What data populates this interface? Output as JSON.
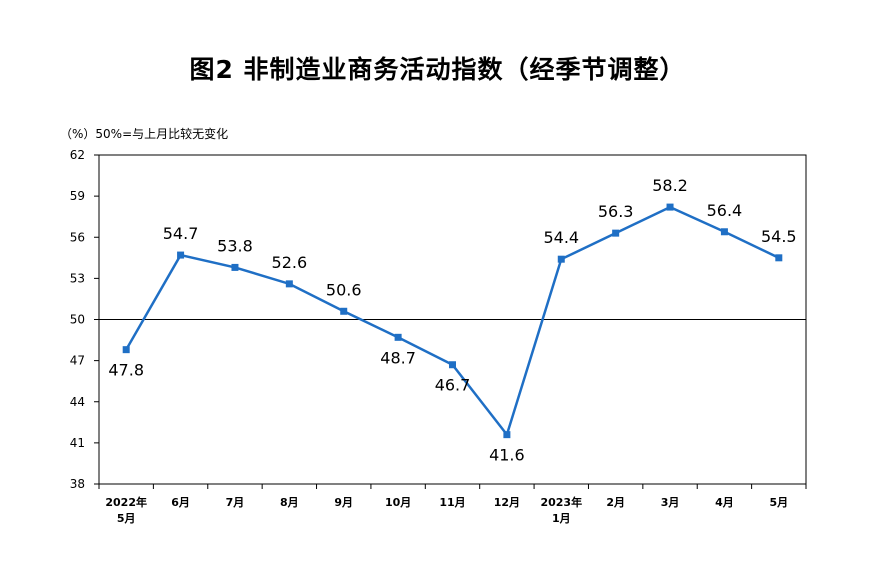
{
  "title": "图2 非制造业商务活动指数（经季节调整）",
  "y_note": "（%）50%=与上月比较无变化",
  "chart_data": {
    "type": "line",
    "title": "图2 非制造业商务活动指数（经季节调整）",
    "ylabel": "（%）50%=与上月比较无变化",
    "xlabel": "",
    "categories": [
      [
        "2022年",
        "5月"
      ],
      [
        "6月"
      ],
      [
        "7月"
      ],
      [
        "8月"
      ],
      [
        "9月"
      ],
      [
        "10月"
      ],
      [
        "11月"
      ],
      [
        "12月"
      ],
      [
        "2023年",
        "1月"
      ],
      [
        "2月"
      ],
      [
        "3月"
      ],
      [
        "4月"
      ],
      [
        "5月"
      ]
    ],
    "values": [
      47.8,
      54.7,
      53.8,
      52.6,
      50.6,
      48.7,
      46.7,
      41.6,
      54.4,
      56.3,
      58.2,
      56.4,
      54.5
    ],
    "value_labels": [
      "47.8",
      "54.7",
      "53.8",
      "52.6",
      "50.6",
      "48.7",
      "46.7",
      "41.6",
      "54.4",
      "56.3",
      "58.2",
      "56.4",
      "54.5"
    ],
    "label_position": [
      "below",
      "above",
      "above",
      "above",
      "above",
      "below",
      "below",
      "below",
      "above",
      "above",
      "above",
      "above",
      "above"
    ],
    "yticks": [
      "38",
      "41",
      "44",
      "47",
      "50",
      "53",
      "56",
      "59",
      "62"
    ],
    "ylim": [
      38,
      62
    ],
    "reference_line": 50,
    "grid": false,
    "colors": {
      "line": "#1F6FC5",
      "marker": "#1F6FC5",
      "axis": "#000000"
    }
  }
}
